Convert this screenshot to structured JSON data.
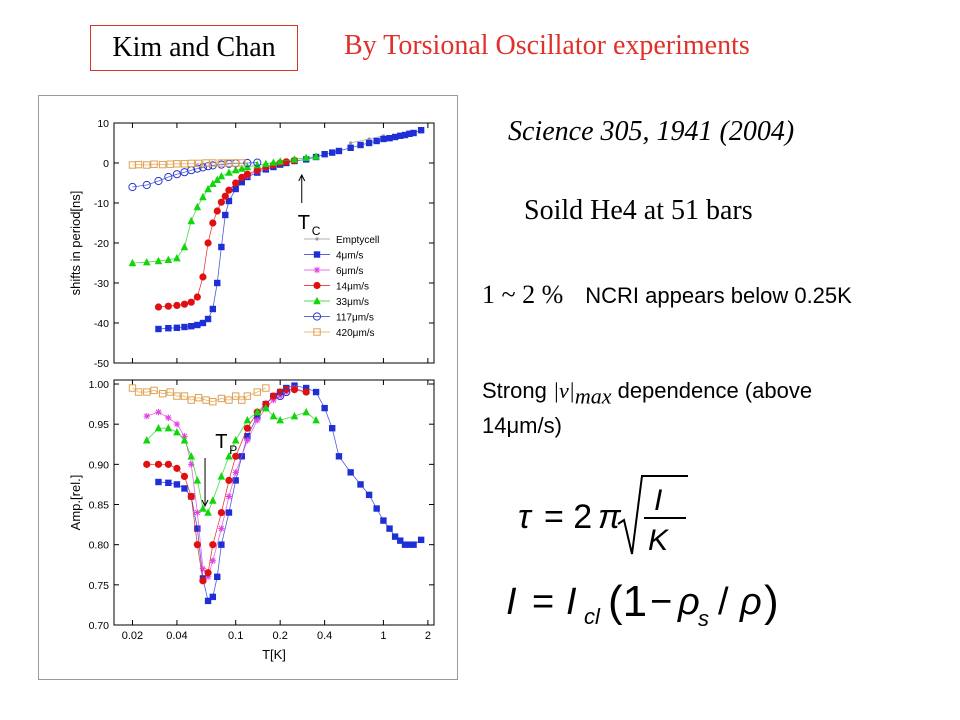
{
  "header": {
    "authors": "Kim and Chan",
    "headline": "By Torsional  Oscillator experiments"
  },
  "citation": "Science 305, 1941 (2004)",
  "sample": "Soild He4 at  51 bars",
  "notes": {
    "ncri_math": "1 ~ 2 %",
    "ncri_text": "NCRI appears below 0.25K",
    "dependence_pre": "Strong ",
    "dependence_v": "|v|",
    "dependence_sub": "max",
    "dependence_post": " dependence (above 14μm/s)"
  },
  "equations": {
    "period": "τ = 2π √(I/K)",
    "inertia": "I = I_cl (1 − ρ_s / ρ)"
  },
  "chart_data": [
    {
      "type": "scatter",
      "panel": "top",
      "ylabel": "shifts in period[ns]",
      "xscale": "log",
      "xlim": [
        0.015,
        2.2
      ],
      "ylim": [
        -50,
        10
      ],
      "yticks": [
        10,
        0,
        -10,
        -20,
        -30,
        -40,
        -50
      ],
      "annotation": {
        "text": "T",
        "sub": "C",
        "at_x": 0.28
      },
      "legend_position": "bottom-right",
      "series": [
        {
          "name": "Emptycell",
          "color": "#999999",
          "marker": "dot",
          "x": [
            0.6,
            0.8,
            1.0
          ],
          "y": [
            5.0,
            6.0,
            6.8
          ]
        },
        {
          "name": "4μm/s",
          "color": "#1f2fd6",
          "marker": "square",
          "x": [
            0.03,
            0.035,
            0.04,
            0.045,
            0.05,
            0.055,
            0.06,
            0.065,
            0.07,
            0.075,
            0.08,
            0.085,
            0.09,
            0.1,
            0.11,
            0.12,
            0.14,
            0.16,
            0.18,
            0.2,
            0.22,
            0.25,
            0.3,
            0.35,
            0.4,
            0.45,
            0.5,
            0.6,
            0.7,
            0.8,
            0.9,
            1.0,
            1.1,
            1.2,
            1.3,
            1.4,
            1.5,
            1.6,
            1.8
          ],
          "y": [
            -41.5,
            -41.3,
            -41.2,
            -41.0,
            -40.8,
            -40.5,
            -40.0,
            -39.0,
            -36.5,
            -30.0,
            -21.0,
            -13.0,
            -9.5,
            -6.5,
            -4.8,
            -3.5,
            -2.4,
            -1.6,
            -1.0,
            -0.4,
            0.0,
            0.5,
            0.9,
            1.5,
            2.2,
            2.6,
            3.0,
            3.8,
            4.5,
            5.0,
            5.5,
            6.0,
            6.2,
            6.5,
            6.8,
            7.0,
            7.3,
            7.5,
            8.2
          ]
        },
        {
          "name": "6μm/s",
          "color": "#e040e0",
          "marker": "star",
          "x": [
            0.12,
            0.14,
            0.16,
            0.18
          ],
          "y": [
            -3.2,
            -2.0,
            -1.2,
            -0.6
          ]
        },
        {
          "name": "14μm/s",
          "color": "#e01010",
          "marker": "circle",
          "x": [
            0.03,
            0.035,
            0.04,
            0.045,
            0.05,
            0.055,
            0.06,
            0.065,
            0.07,
            0.075,
            0.08,
            0.085,
            0.09,
            0.1,
            0.11,
            0.12,
            0.14,
            0.16,
            0.18,
            0.2,
            0.22,
            0.25
          ],
          "y": [
            -36.0,
            -35.8,
            -35.6,
            -35.3,
            -34.8,
            -33.5,
            -28.5,
            -20.0,
            -15.0,
            -12.0,
            -9.8,
            -8.3,
            -6.8,
            -5.0,
            -3.6,
            -2.8,
            -1.8,
            -1.0,
            -0.5,
            0.0,
            0.3,
            0.6
          ]
        },
        {
          "name": "33μm/s",
          "color": "#12d60c",
          "marker": "triangle",
          "x": [
            0.02,
            0.025,
            0.03,
            0.035,
            0.04,
            0.045,
            0.05,
            0.055,
            0.06,
            0.065,
            0.07,
            0.075,
            0.08,
            0.09,
            0.1,
            0.11,
            0.12,
            0.14,
            0.16,
            0.18,
            0.2,
            0.25,
            0.3,
            0.35
          ],
          "y": [
            -25.0,
            -24.8,
            -24.5,
            -24.2,
            -23.8,
            -21.0,
            -14.5,
            -11.0,
            -8.5,
            -6.5,
            -5.2,
            -4.2,
            -3.3,
            -2.4,
            -1.8,
            -1.4,
            -1.0,
            -0.5,
            -0.2,
            0.1,
            0.4,
            0.9,
            1.3,
            1.6
          ]
        },
        {
          "name": "117μm/s",
          "color": "#2a3ad0",
          "marker": "open-circle",
          "x": [
            0.02,
            0.025,
            0.03,
            0.035,
            0.04,
            0.045,
            0.05,
            0.055,
            0.06,
            0.065,
            0.07,
            0.08,
            0.09,
            0.1,
            0.12,
            0.14
          ],
          "y": [
            -6.0,
            -5.5,
            -4.5,
            -3.5,
            -2.8,
            -2.3,
            -1.8,
            -1.4,
            -1.1,
            -0.8,
            -0.6,
            -0.4,
            -0.2,
            -0.1,
            0.0,
            0.1
          ]
        },
        {
          "name": "420μm/s",
          "color": "#e0a050",
          "marker": "open-square",
          "x": [
            0.02,
            0.022,
            0.025,
            0.028,
            0.032,
            0.036,
            0.04,
            0.045,
            0.05,
            0.056,
            0.063,
            0.07,
            0.08,
            0.09,
            0.1,
            0.11
          ],
          "y": [
            -0.5,
            -0.4,
            -0.5,
            -0.3,
            -0.4,
            -0.3,
            -0.2,
            -0.2,
            -0.1,
            -0.1,
            0.0,
            0.0,
            0.0,
            0.0,
            0.0,
            0.0
          ]
        }
      ]
    },
    {
      "type": "scatter",
      "panel": "bottom",
      "ylabel": "Amp.[rel.]",
      "xlabel": "T[K]",
      "xscale": "log",
      "xlim": [
        0.015,
        2.2
      ],
      "ylim": [
        0.7,
        1.005
      ],
      "yticks": [
        1.0,
        0.95,
        0.9,
        0.85,
        0.8,
        0.75,
        0.7
      ],
      "xticks": [
        0.02,
        0.04,
        0.1,
        0.2,
        0.4,
        1,
        2
      ],
      "xticklabels": [
        "0.02",
        "0.04",
        "0.1",
        "0.2",
        "0.4",
        "1",
        "2"
      ],
      "annotation": {
        "text": "T",
        "sub": "P",
        "at_x": 0.062
      },
      "series": [
        {
          "name": "4μm/s",
          "color": "#1f2fd6",
          "marker": "square",
          "x": [
            0.03,
            0.035,
            0.04,
            0.045,
            0.05,
            0.055,
            0.06,
            0.065,
            0.07,
            0.075,
            0.08,
            0.09,
            0.1,
            0.11,
            0.12,
            0.14,
            0.16,
            0.18,
            0.2,
            0.22,
            0.25,
            0.3,
            0.35,
            0.4,
            0.45,
            0.5,
            0.6,
            0.7,
            0.8,
            0.9,
            1.0,
            1.1,
            1.2,
            1.3,
            1.4,
            1.5,
            1.6,
            1.8
          ],
          "y": [
            0.878,
            0.877,
            0.875,
            0.87,
            0.86,
            0.82,
            0.758,
            0.73,
            0.735,
            0.76,
            0.8,
            0.84,
            0.88,
            0.91,
            0.935,
            0.96,
            0.975,
            0.985,
            0.99,
            0.995,
            0.998,
            0.995,
            0.99,
            0.97,
            0.945,
            0.91,
            0.89,
            0.875,
            0.862,
            0.845,
            0.83,
            0.82,
            0.81,
            0.805,
            0.8,
            0.8,
            0.8,
            0.806
          ]
        },
        {
          "name": "6μm/s",
          "color": "#e040e0",
          "marker": "star",
          "x": [
            0.025,
            0.03,
            0.035,
            0.04,
            0.045,
            0.05,
            0.055,
            0.06,
            0.065,
            0.07,
            0.08,
            0.09,
            0.1,
            0.12,
            0.14,
            0.16,
            0.18,
            0.2,
            0.22,
            0.25,
            0.3
          ],
          "y": [
            0.96,
            0.965,
            0.958,
            0.95,
            0.935,
            0.9,
            0.84,
            0.77,
            0.76,
            0.78,
            0.82,
            0.86,
            0.89,
            0.93,
            0.955,
            0.97,
            0.98,
            0.985,
            0.99,
            0.995,
            0.99
          ]
        },
        {
          "name": "14μm/s",
          "color": "#e01010",
          "marker": "circle",
          "x": [
            0.025,
            0.03,
            0.035,
            0.04,
            0.045,
            0.05,
            0.055,
            0.06,
            0.065,
            0.07,
            0.08,
            0.09,
            0.1,
            0.12,
            0.14,
            0.16,
            0.18,
            0.2,
            0.22,
            0.25,
            0.3
          ],
          "y": [
            0.9,
            0.9,
            0.9,
            0.895,
            0.885,
            0.86,
            0.8,
            0.755,
            0.765,
            0.8,
            0.84,
            0.88,
            0.91,
            0.945,
            0.965,
            0.975,
            0.985,
            0.99,
            0.993,
            0.993,
            0.99
          ]
        },
        {
          "name": "33μm/s",
          "color": "#12d60c",
          "marker": "triangle",
          "x": [
            0.025,
            0.03,
            0.035,
            0.04,
            0.045,
            0.05,
            0.055,
            0.06,
            0.065,
            0.07,
            0.08,
            0.09,
            0.1,
            0.12,
            0.14,
            0.16,
            0.18,
            0.2,
            0.25,
            0.3,
            0.35
          ],
          "y": [
            0.93,
            0.945,
            0.945,
            0.94,
            0.93,
            0.91,
            0.88,
            0.845,
            0.84,
            0.855,
            0.885,
            0.91,
            0.93,
            0.955,
            0.965,
            0.97,
            0.96,
            0.955,
            0.96,
            0.965,
            0.955
          ]
        },
        {
          "name": "117μm/s",
          "color": "#2a3ad0",
          "marker": "open-circle",
          "x": [
            0.2,
            0.22
          ],
          "y": [
            0.985,
            0.99
          ]
        },
        {
          "name": "420μm/s",
          "color": "#e0a050",
          "marker": "open-square",
          "x": [
            0.02,
            0.022,
            0.025,
            0.028,
            0.032,
            0.036,
            0.04,
            0.045,
            0.05,
            0.056,
            0.063,
            0.07,
            0.08,
            0.09,
            0.1,
            0.11,
            0.12,
            0.14,
            0.16
          ],
          "y": [
            0.995,
            0.99,
            0.99,
            0.992,
            0.988,
            0.99,
            0.985,
            0.985,
            0.98,
            0.983,
            0.98,
            0.978,
            0.982,
            0.98,
            0.985,
            0.98,
            0.985,
            0.99,
            0.995
          ]
        }
      ]
    }
  ]
}
